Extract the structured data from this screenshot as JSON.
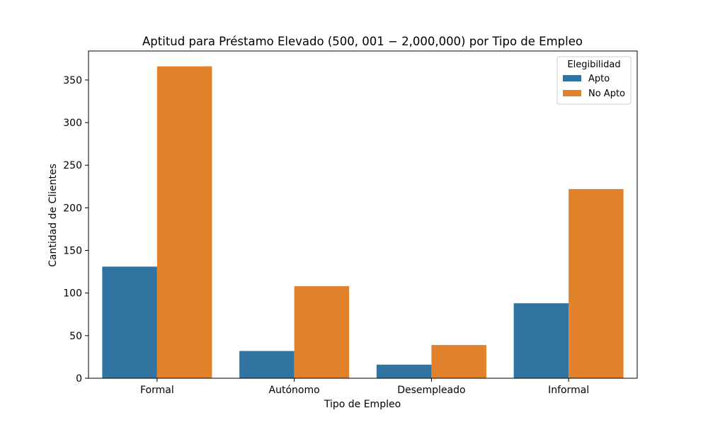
{
  "chart_data": {
    "type": "bar",
    "title": "Aptitud para Préstamo Elevado (500, 001 − 2,000,000) por Tipo de Empleo",
    "xlabel": "Tipo de Empleo",
    "ylabel": "Cantidad de Clientes",
    "categories": [
      "Formal",
      "Autónomo",
      "Desempleado",
      "Informal"
    ],
    "series": [
      {
        "name": "Apto",
        "values": [
          131,
          32,
          16,
          88
        ],
        "color": "#3274a1"
      },
      {
        "name": "No Apto",
        "values": [
          366,
          108,
          39,
          222
        ],
        "color": "#e1812c"
      }
    ],
    "ylim": [
      0,
      384
    ],
    "yticks": [
      0,
      50,
      100,
      150,
      200,
      250,
      300,
      350
    ],
    "grid": false,
    "legend": {
      "title": "Elegibilidad",
      "position": "top-right"
    }
  }
}
